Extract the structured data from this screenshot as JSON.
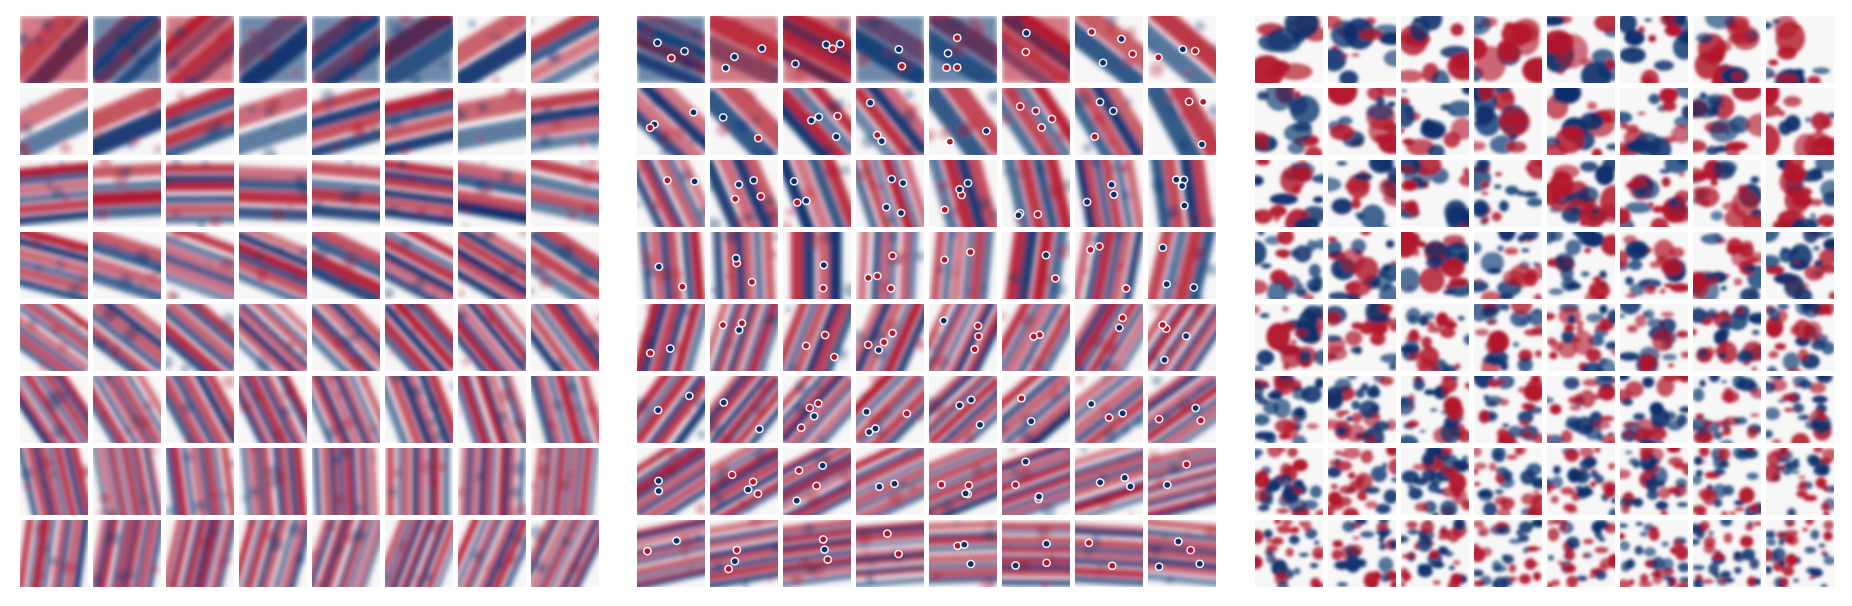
{
  "figure": {
    "panels": [
      {
        "id": "panel-1",
        "rows": 8,
        "cols": 8,
        "style": "smooth-filters"
      },
      {
        "id": "panel-2",
        "rows": 8,
        "cols": 8,
        "style": "filters-with-dots"
      },
      {
        "id": "panel-3",
        "rows": 8,
        "cols": 8,
        "style": "noisy-filters"
      }
    ],
    "colormap": {
      "positive": "#b2182b",
      "neutral": "#f7f7f7",
      "negative": "#08306b"
    }
  }
}
